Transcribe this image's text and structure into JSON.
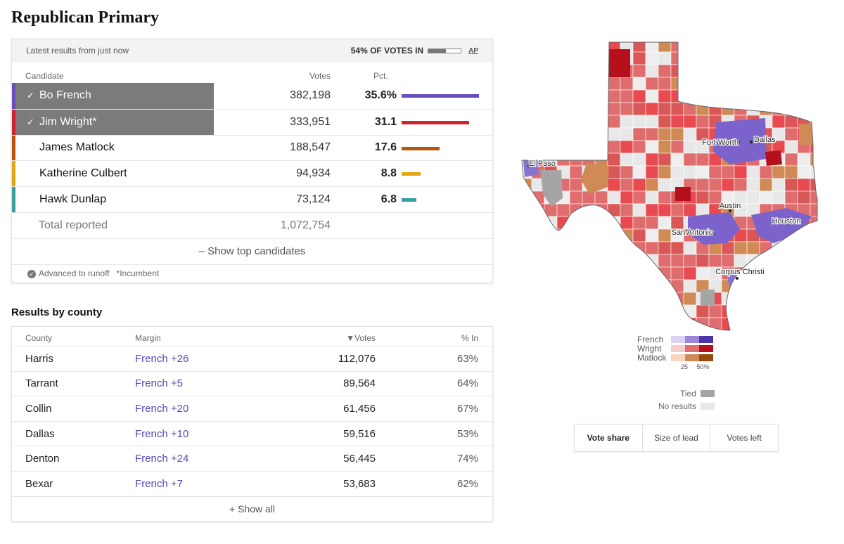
{
  "page_title": "Republican Primary",
  "results": {
    "latest_label": "Latest results from just now",
    "reporting_label": "54% OF VOTES IN",
    "reporting_fraction": 0.54,
    "source_label": "AP",
    "headers": {
      "candidate": "Candidate",
      "votes": "Votes",
      "pct": "Pct."
    },
    "candidates": [
      {
        "name": "Bo French",
        "votes": "382,198",
        "pct": "35.6%",
        "pct_value": 35.6,
        "color": "#6a4dbc",
        "advanced": true
      },
      {
        "name": "Jim Wright*",
        "votes": "333,951",
        "pct": "31.1",
        "pct_value": 31.1,
        "color": "#d0232e",
        "advanced": true
      },
      {
        "name": "James Matlock",
        "votes": "188,547",
        "pct": "17.6",
        "pct_value": 17.6,
        "color": "#b8560e",
        "advanced": false
      },
      {
        "name": "Katherine Culbert",
        "votes": "94,934",
        "pct": "8.8",
        "pct_value": 8.8,
        "color": "#e2a613",
        "advanced": false
      },
      {
        "name": "Hawk Dunlap",
        "votes": "73,124",
        "pct": "6.8",
        "pct_value": 6.8,
        "color": "#3a9f9c",
        "advanced": false
      }
    ],
    "total_label": "Total reported",
    "total_votes": "1,072,754",
    "show_top_label": "– Show top candidates",
    "footnote_runoff": "Advanced to runoff",
    "footnote_incumbent": "*Incumbent"
  },
  "county": {
    "title": "Results by county",
    "headers": {
      "county": "County",
      "margin": "Margin",
      "votes": "▼Votes",
      "pct_in": "% In"
    },
    "rows": [
      {
        "county": "Harris",
        "margin": "French +26",
        "votes": "112,076",
        "pct_in": "63%"
      },
      {
        "county": "Tarrant",
        "margin": "French +5",
        "votes": "89,564",
        "pct_in": "64%"
      },
      {
        "county": "Collin",
        "margin": "French +20",
        "votes": "61,456",
        "pct_in": "67%"
      },
      {
        "county": "Dallas",
        "margin": "French +10",
        "votes": "59,516",
        "pct_in": "53%"
      },
      {
        "county": "Denton",
        "margin": "French +24",
        "votes": "56,445",
        "pct_in": "74%"
      },
      {
        "county": "Bexar",
        "margin": "French +7",
        "votes": "53,683",
        "pct_in": "62%"
      }
    ],
    "show_all_label": "+ Show all"
  },
  "map": {
    "cities": [
      "El Paso",
      "Fort Worth",
      "Dallas",
      "Austin",
      "Houston",
      "San Antonio",
      "Corpus Christi"
    ],
    "legend": {
      "rows": [
        {
          "name": "French",
          "colors": [
            "#d9d2f1",
            "#9a86d8",
            "#4b33a8"
          ]
        },
        {
          "name": "Wright",
          "colors": [
            "#f5cccc",
            "#e06d6d",
            "#b5101c"
          ]
        },
        {
          "name": "Matlock",
          "colors": [
            "#f6d7be",
            "#cf8a55",
            "#9a4a0c"
          ]
        }
      ],
      "tick_low": "25",
      "tick_high": "50%",
      "tied_label": "Tied",
      "tied_color": "#a5a5a5",
      "no_results_label": "No results",
      "no_results_color": "#e8e8e8"
    },
    "toggle": [
      "Vote share",
      "Size of lead",
      "Votes left"
    ],
    "toggle_selected": "Vote share"
  }
}
